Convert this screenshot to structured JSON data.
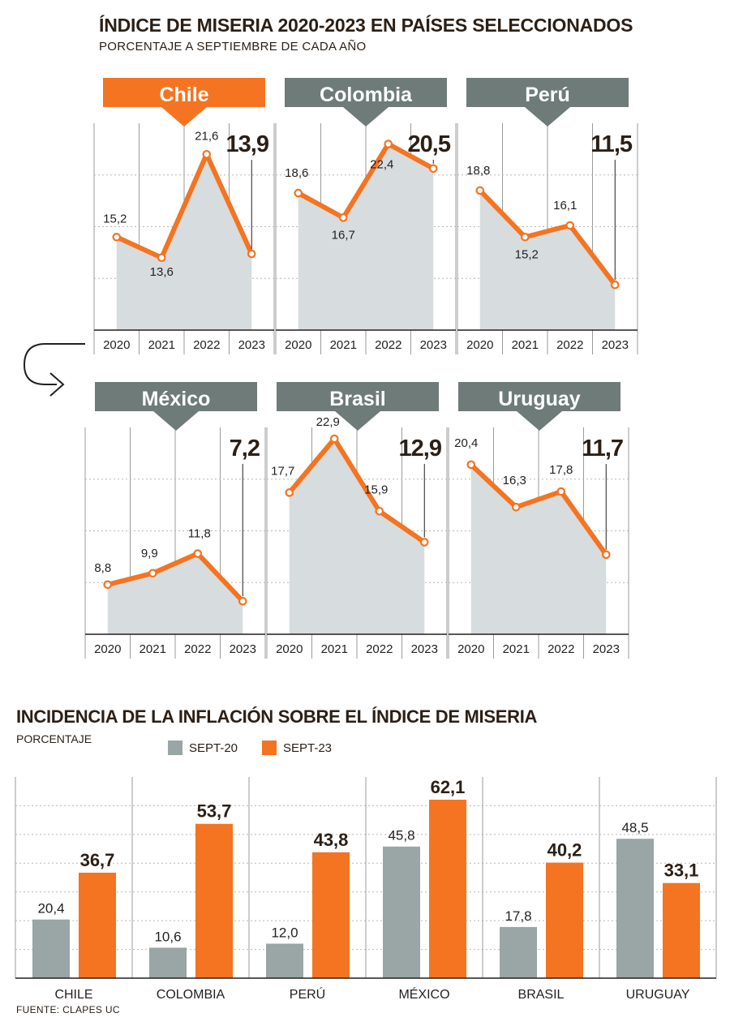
{
  "title": "ÍNDICE DE MISERIA 2020-2023 EN PAÍSES SELECCIONADOS",
  "subtitle": "PORCENTAJE A SEPTIEMBRE DE CADA AÑO",
  "colors": {
    "orange": "#f47421",
    "gray": "#6e7b78",
    "bar_gray": "#9aa5a5",
    "fill": "#d7dcde",
    "dark": "#2b1f16"
  },
  "chart_data": [
    {
      "type": "line",
      "title": "Chile",
      "highlight": true,
      "x": [
        "2020",
        "2021",
        "2022",
        "2023"
      ],
      "values": [
        15.2,
        13.6,
        21.6,
        13.9
      ],
      "labels": [
        "15,2",
        "13,6",
        "21,6",
        "13,9"
      ],
      "ylim": [
        8,
        24
      ]
    },
    {
      "type": "line",
      "title": "Colombia",
      "highlight": false,
      "x": [
        "2020",
        "2021",
        "2022",
        "2023"
      ],
      "values": [
        18.6,
        16.7,
        22.4,
        20.5
      ],
      "labels": [
        "18,6",
        "16,7",
        "22,4",
        "20,5"
      ],
      "ylim": [
        8,
        24
      ]
    },
    {
      "type": "line",
      "title": "Perú",
      "highlight": false,
      "x": [
        "2020",
        "2021",
        "2022",
        "2023"
      ],
      "values": [
        18.8,
        15.2,
        16.1,
        11.5
      ],
      "labels": [
        "18,8",
        "15,2",
        "16,1",
        "11,5"
      ],
      "ylim": [
        8,
        24
      ]
    },
    {
      "type": "line",
      "title": "México",
      "highlight": false,
      "x": [
        "2020",
        "2021",
        "2022",
        "2023"
      ],
      "values": [
        8.8,
        9.9,
        11.8,
        7.2
      ],
      "labels": [
        "8,8",
        "9,9",
        "11,8",
        "7,2"
      ],
      "ylim": [
        4,
        24
      ]
    },
    {
      "type": "line",
      "title": "Brasil",
      "highlight": false,
      "x": [
        "2020",
        "2021",
        "2022",
        "2023"
      ],
      "values": [
        17.7,
        22.9,
        15.9,
        12.9
      ],
      "labels": [
        "17,7",
        "22,9",
        "15,9",
        "12,9"
      ],
      "ylim": [
        4,
        24
      ]
    },
    {
      "type": "line",
      "title": "Uruguay",
      "highlight": false,
      "x": [
        "2020",
        "2021",
        "2022",
        "2023"
      ],
      "values": [
        20.4,
        16.3,
        17.8,
        11.7
      ],
      "labels": [
        "20,4",
        "16,3",
        "17,8",
        "11,7"
      ],
      "ylim": [
        4,
        24
      ]
    },
    {
      "type": "bar",
      "title": "INCIDENCIA DE LA INFLACIÓN SOBRE EL ÍNDICE DE MISERIA",
      "ylabel": "PORCENTAJE",
      "categories": [
        "CHILE",
        "COLOMBIA",
        "PERÚ",
        "MÉXICO",
        "BRASIL",
        "URUGUAY"
      ],
      "series": [
        {
          "name": "SEPT-20",
          "values": [
            20.4,
            10.6,
            12.0,
            45.8,
            17.8,
            48.5
          ],
          "labels": [
            "20,4",
            "10,6",
            "12,0",
            "45,8",
            "17,8",
            "48,5"
          ]
        },
        {
          "name": "SEPT-23",
          "values": [
            36.7,
            53.7,
            43.8,
            62.1,
            40.2,
            33.1
          ],
          "labels": [
            "36,7",
            "53,7",
            "43,8",
            "62,1",
            "40,2",
            "33,1"
          ]
        }
      ],
      "ylim": [
        0,
        70
      ]
    }
  ],
  "source": "FUENTE: CLAPES UC"
}
